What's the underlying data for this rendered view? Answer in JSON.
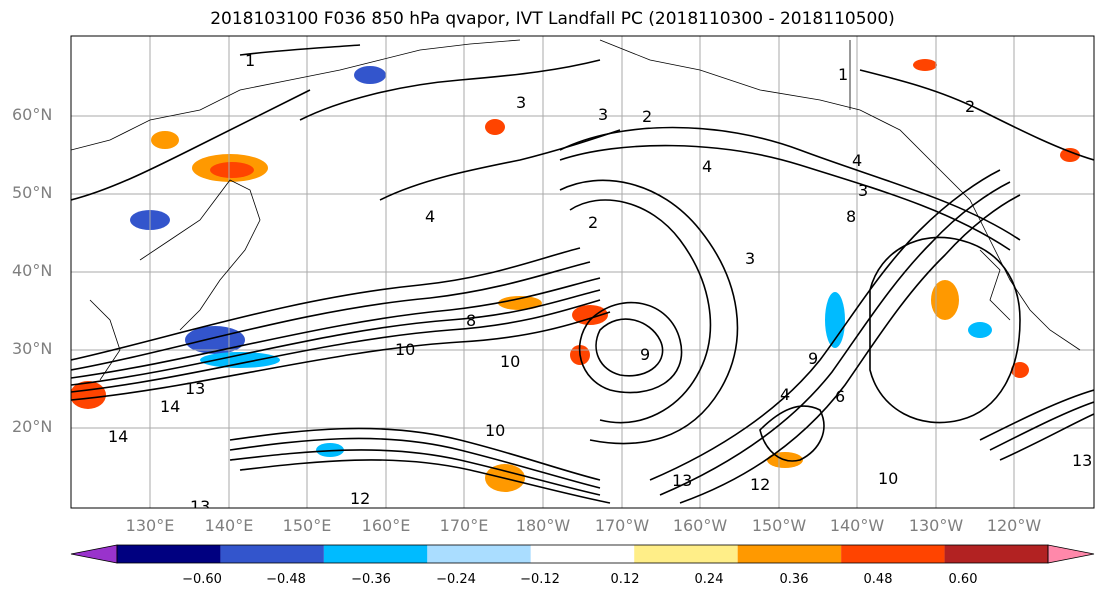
{
  "title": "2018103100 F036 850 hPa qvapor, IVT Landfall PC (2018110300 - 2018110500)",
  "map": {
    "lat_labels": [
      "60°N",
      "50°N",
      "40°N",
      "30°N",
      "20°N"
    ],
    "lon_labels": [
      "130°E",
      "140°E",
      "150°E",
      "160°E",
      "170°E",
      "180°W",
      "170°W",
      "160°W",
      "150°W",
      "140°W",
      "130°W",
      "120°W"
    ],
    "contour_labels": [
      "1",
      "1",
      "2",
      "3",
      "3",
      "4",
      "4",
      "3",
      "2",
      "8",
      "4",
      "8",
      "9",
      "10",
      "10",
      "13",
      "14",
      "14",
      "13",
      "12",
      "10",
      "13",
      "12",
      "10",
      "13",
      "9",
      "6",
      "4",
      "3",
      "2"
    ]
  },
  "colorbar": {
    "colors": [
      "#9933cc",
      "#000080",
      "#3355cc",
      "#00bbff",
      "#aaddff",
      "#ffffff",
      "#ffee88",
      "#ff9900",
      "#ff4400",
      "#b22222",
      "#ff88aa"
    ],
    "tick_labels": [
      "−0.60",
      "−0.48",
      "−0.36",
      "−0.24",
      "−0.12",
      "0.12",
      "0.24",
      "0.36",
      "0.48",
      "0.60"
    ]
  }
}
